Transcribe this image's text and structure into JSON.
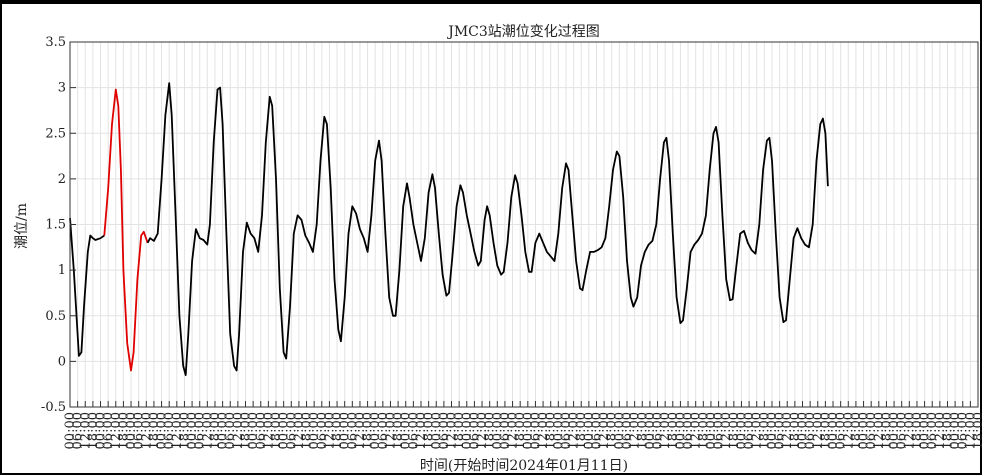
{
  "chart_data": {
    "type": "line",
    "title": "JMC3站潮位变化过程图",
    "xlabel": "时间(开始时间2024年01月11日)",
    "ylabel": "潮位/m",
    "ylim": [
      -0.5,
      3.5
    ],
    "yticks": [
      "-0.5",
      "0",
      "0.5",
      "1",
      "1.5",
      "2",
      "2.5",
      "3",
      "3.5"
    ],
    "xticks": [
      "00:00",
      "06:00",
      "12:00",
      "18:00",
      "00:00",
      "06:00",
      "12:00",
      "18:00",
      "00:00",
      "06:00",
      "12:00",
      "18:00",
      "00:00",
      "06:00",
      "12:00",
      "18:00",
      "00:00",
      "06:00",
      "12:00",
      "18:00",
      "00:00",
      "06:00",
      "12:00",
      "18:00",
      "00:00",
      "06:00",
      "12:00",
      "18:00",
      "00:00",
      "06:00",
      "12:00",
      "18:00",
      "00:00",
      "06:00",
      "12:00",
      "18:00",
      "00:00",
      "06:00",
      "12:00",
      "18:00",
      "00:00",
      "06:00",
      "12:00",
      "18:00",
      "00:00",
      "06:00",
      "12:00",
      "18:00",
      "00:00",
      "06:00",
      "12:00",
      "18:00",
      "00:00",
      "06:00",
      "12:00",
      "18:00",
      "00:00",
      "06:00",
      "12:00",
      "18:00",
      "00:00",
      "06:00",
      "12:00",
      "18:00",
      "00:00",
      "06:00",
      "12:00",
      "18:00",
      "00:00",
      "06:00",
      "12:00",
      "18:00",
      "00:00",
      "06:00",
      "12:00",
      "18:00",
      "00:00",
      "06:00",
      "12:00",
      "18:00",
      "00:00",
      "06:00",
      "12:00",
      "18:00",
      "00:00",
      "06:00",
      "12:00",
      "18:00",
      "00:00",
      "06:00",
      "12:00",
      "18:00",
      "00:00",
      "06:00",
      "12:00",
      "18:00",
      "00:00",
      "06:00",
      "12:00",
      "18:00",
      "00:00",
      "06:00",
      "12:00",
      "18:00",
      "00:00",
      "06:00",
      "12:00",
      "18:00",
      "00:00",
      "06:00",
      "12:00",
      "18:00",
      "00:00",
      "06:00",
      "12:00",
      "18:00",
      "00:00",
      "06:00",
      "12:00",
      "18:00",
      "00:00",
      "06:00",
      "12:00",
      "18:00",
      "00:00",
      "06:00",
      "12:00",
      "18:00",
      "00:00",
      "06:00",
      "12:00",
      "18:00",
      "00:00",
      "06:00",
      "12:00",
      "18:00",
      "00:00",
      "06:00",
      "12:00",
      "18:00",
      "00:00",
      "06:00",
      "12:00",
      "18:00"
    ],
    "xlim_hours": [
      0,
      714
    ],
    "grid": true,
    "series": [
      {
        "color": "#000000",
        "points": [
          [
            0,
            1.57
          ],
          [
            3,
            1.0
          ],
          [
            6,
            0.3
          ],
          [
            7,
            0.06
          ],
          [
            9,
            0.1
          ],
          [
            11,
            0.6
          ],
          [
            14,
            1.2
          ],
          [
            16,
            1.38
          ],
          [
            18,
            1.35
          ],
          [
            20,
            1.33
          ],
          [
            24,
            1.35
          ],
          [
            27,
            1.38
          ]
        ]
      },
      {
        "color": "#e00000",
        "points": [
          [
            27,
            1.38
          ],
          [
            30,
            1.9
          ],
          [
            33,
            2.6
          ],
          [
            36,
            2.98
          ],
          [
            38,
            2.8
          ],
          [
            40,
            2.1
          ],
          [
            42,
            1.0
          ],
          [
            45,
            0.2
          ],
          [
            48,
            -0.1
          ],
          [
            50,
            0.1
          ],
          [
            53,
            0.9
          ],
          [
            56,
            1.38
          ],
          [
            58,
            1.42
          ],
          [
            61,
            1.3
          ]
        ]
      },
      {
        "color": "#000000",
        "points": [
          [
            61,
            1.3
          ],
          [
            63,
            1.35
          ],
          [
            66,
            1.32
          ],
          [
            69,
            1.4
          ],
          [
            72,
            2.0
          ],
          [
            75,
            2.7
          ],
          [
            78,
            3.05
          ],
          [
            80,
            2.7
          ],
          [
            83,
            1.6
          ],
          [
            86,
            0.5
          ],
          [
            89,
            -0.05
          ],
          [
            91,
            -0.15
          ],
          [
            93,
            0.3
          ],
          [
            96,
            1.1
          ],
          [
            99,
            1.45
          ],
          [
            102,
            1.35
          ],
          [
            105,
            1.33
          ],
          [
            108,
            1.28
          ],
          [
            110,
            1.5
          ],
          [
            113,
            2.4
          ],
          [
            116,
            2.98
          ],
          [
            118,
            3.0
          ],
          [
            120,
            2.6
          ],
          [
            123,
            1.4
          ],
          [
            126,
            0.3
          ],
          [
            129,
            -0.05
          ],
          [
            131,
            -0.1
          ],
          [
            133,
            0.3
          ],
          [
            136,
            1.2
          ],
          [
            139,
            1.52
          ],
          [
            142,
            1.4
          ],
          [
            145,
            1.35
          ],
          [
            148,
            1.2
          ],
          [
            151,
            1.6
          ],
          [
            154,
            2.4
          ],
          [
            157,
            2.9
          ],
          [
            159,
            2.8
          ],
          [
            162,
            2.0
          ],
          [
            165,
            0.8
          ],
          [
            168,
            0.1
          ],
          [
            170,
            0.03
          ],
          [
            173,
            0.6
          ],
          [
            176,
            1.4
          ],
          [
            179,
            1.6
          ],
          [
            182,
            1.55
          ],
          [
            185,
            1.38
          ],
          [
            188,
            1.3
          ],
          [
            191,
            1.2
          ],
          [
            194,
            1.5
          ],
          [
            197,
            2.2
          ],
          [
            200,
            2.68
          ],
          [
            202,
            2.6
          ],
          [
            205,
            1.9
          ],
          [
            208,
            0.9
          ],
          [
            211,
            0.35
          ],
          [
            213,
            0.22
          ],
          [
            216,
            0.7
          ],
          [
            219,
            1.4
          ],
          [
            222,
            1.7
          ],
          [
            225,
            1.62
          ],
          [
            228,
            1.45
          ],
          [
            231,
            1.35
          ],
          [
            234,
            1.2
          ],
          [
            237,
            1.6
          ],
          [
            240,
            2.2
          ],
          [
            243,
            2.42
          ],
          [
            245,
            2.2
          ],
          [
            248,
            1.4
          ],
          [
            251,
            0.7
          ],
          [
            254,
            0.5
          ],
          [
            256,
            0.5
          ],
          [
            259,
            1.0
          ],
          [
            262,
            1.7
          ],
          [
            265,
            1.95
          ],
          [
            267,
            1.8
          ],
          [
            270,
            1.5
          ],
          [
            273,
            1.3
          ],
          [
            276,
            1.1
          ],
          [
            279,
            1.35
          ],
          [
            282,
            1.85
          ],
          [
            285,
            2.05
          ],
          [
            287,
            1.9
          ],
          [
            290,
            1.4
          ],
          [
            293,
            0.95
          ],
          [
            296,
            0.72
          ],
          [
            298,
            0.75
          ],
          [
            301,
            1.2
          ],
          [
            304,
            1.7
          ],
          [
            307,
            1.93
          ],
          [
            309,
            1.85
          ],
          [
            312,
            1.6
          ],
          [
            315,
            1.4
          ],
          [
            318,
            1.2
          ],
          [
            321,
            1.05
          ],
          [
            323,
            1.1
          ],
          [
            326,
            1.55
          ],
          [
            328,
            1.7
          ],
          [
            330,
            1.6
          ],
          [
            333,
            1.3
          ],
          [
            336,
            1.05
          ],
          [
            339,
            0.95
          ],
          [
            341,
            0.98
          ],
          [
            344,
            1.3
          ],
          [
            347,
            1.8
          ],
          [
            350,
            2.04
          ],
          [
            352,
            1.95
          ],
          [
            355,
            1.6
          ],
          [
            358,
            1.2
          ],
          [
            361,
            0.98
          ],
          [
            363,
            0.98
          ],
          [
            366,
            1.3
          ],
          [
            369,
            1.4
          ],
          [
            372,
            1.3
          ],
          [
            375,
            1.2
          ],
          [
            378,
            1.15
          ],
          [
            381,
            1.1
          ],
          [
            384,
            1.4
          ],
          [
            387,
            1.9
          ],
          [
            390,
            2.17
          ],
          [
            392,
            2.1
          ],
          [
            395,
            1.6
          ],
          [
            398,
            1.1
          ],
          [
            401,
            0.8
          ],
          [
            403,
            0.78
          ],
          [
            406,
            1.0
          ],
          [
            409,
            1.2
          ],
          [
            412,
            1.2
          ],
          [
            415,
            1.22
          ],
          [
            418,
            1.25
          ],
          [
            421,
            1.35
          ],
          [
            424,
            1.7
          ],
          [
            427,
            2.1
          ],
          [
            430,
            2.3
          ],
          [
            432,
            2.25
          ],
          [
            435,
            1.8
          ],
          [
            438,
            1.1
          ],
          [
            441,
            0.7
          ],
          [
            443,
            0.6
          ],
          [
            446,
            0.7
          ],
          [
            449,
            1.05
          ],
          [
            452,
            1.2
          ],
          [
            455,
            1.28
          ],
          [
            458,
            1.32
          ],
          [
            461,
            1.5
          ],
          [
            464,
            2.0
          ],
          [
            467,
            2.4
          ],
          [
            469,
            2.45
          ],
          [
            471,
            2.2
          ],
          [
            474,
            1.4
          ],
          [
            477,
            0.7
          ],
          [
            480,
            0.42
          ],
          [
            482,
            0.45
          ],
          [
            485,
            0.8
          ],
          [
            488,
            1.2
          ],
          [
            491,
            1.28
          ],
          [
            494,
            1.33
          ],
          [
            497,
            1.4
          ],
          [
            500,
            1.6
          ],
          [
            503,
            2.1
          ],
          [
            506,
            2.5
          ],
          [
            508,
            2.57
          ],
          [
            510,
            2.4
          ],
          [
            513,
            1.6
          ],
          [
            516,
            0.9
          ],
          [
            519,
            0.67
          ],
          [
            521,
            0.68
          ],
          [
            524,
            1.05
          ],
          [
            527,
            1.4
          ],
          [
            530,
            1.43
          ],
          [
            533,
            1.3
          ],
          [
            536,
            1.22
          ],
          [
            539,
            1.18
          ],
          [
            542,
            1.5
          ],
          [
            545,
            2.1
          ],
          [
            548,
            2.42
          ],
          [
            550,
            2.45
          ],
          [
            552,
            2.2
          ],
          [
            555,
            1.4
          ],
          [
            558,
            0.7
          ],
          [
            561,
            0.43
          ],
          [
            563,
            0.45
          ],
          [
            566,
            0.9
          ],
          [
            569,
            1.35
          ],
          [
            572,
            1.46
          ],
          [
            575,
            1.35
          ],
          [
            578,
            1.28
          ],
          [
            581,
            1.25
          ],
          [
            584,
            1.5
          ],
          [
            587,
            2.2
          ],
          [
            590,
            2.6
          ],
          [
            592,
            2.66
          ],
          [
            594,
            2.5
          ],
          [
            596,
            1.92
          ]
        ]
      }
    ]
  }
}
